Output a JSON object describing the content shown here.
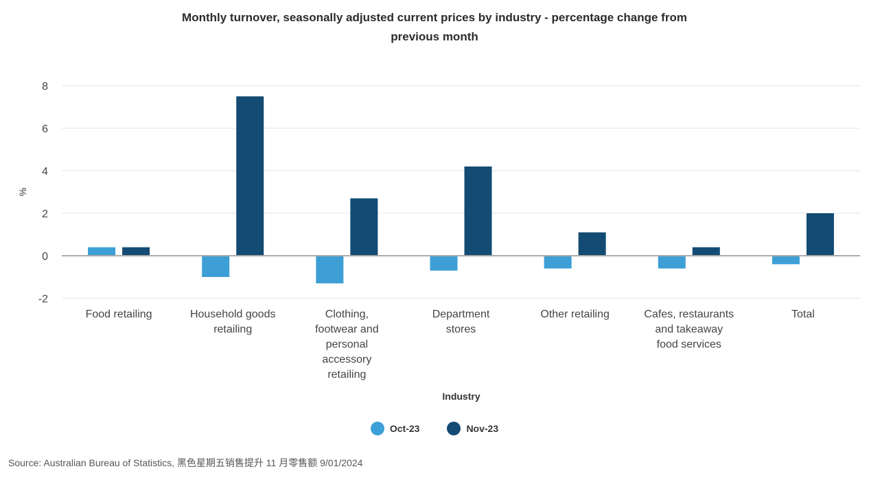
{
  "chart_data": {
    "type": "bar",
    "title_lines": [
      "Monthly turnover, seasonally adjusted current prices by industry - percentage change from",
      "previous month"
    ],
    "xlabel": "Industry",
    "ylabel": "%",
    "ylim": [
      -2,
      8
    ],
    "yticks": [
      -2,
      0,
      2,
      4,
      6,
      8
    ],
    "categories": [
      [
        "Food retailing"
      ],
      [
        "Household goods",
        "retailing"
      ],
      [
        "Clothing,",
        "footwear and",
        "personal",
        "accessory",
        "retailing"
      ],
      [
        "Department",
        "stores"
      ],
      [
        "Other retailing"
      ],
      [
        "Cafes, restaurants",
        "and takeaway",
        "food services"
      ],
      [
        "Total"
      ]
    ],
    "series": [
      {
        "name": "Oct-23",
        "color": "#3d9fd6",
        "values": [
          0.4,
          -1.0,
          -1.3,
          -0.7,
          -0.6,
          -0.6,
          -0.4
        ]
      },
      {
        "name": "Nov-23",
        "color": "#134b73",
        "values": [
          0.4,
          7.5,
          2.7,
          4.2,
          1.1,
          0.4,
          2.0
        ]
      }
    ],
    "grid": true,
    "legend_position": "bottom"
  },
  "source": "Source: Australian Bureau of Statistics, 黑色星期五销售提升 11 月零售额 9/01/2024"
}
